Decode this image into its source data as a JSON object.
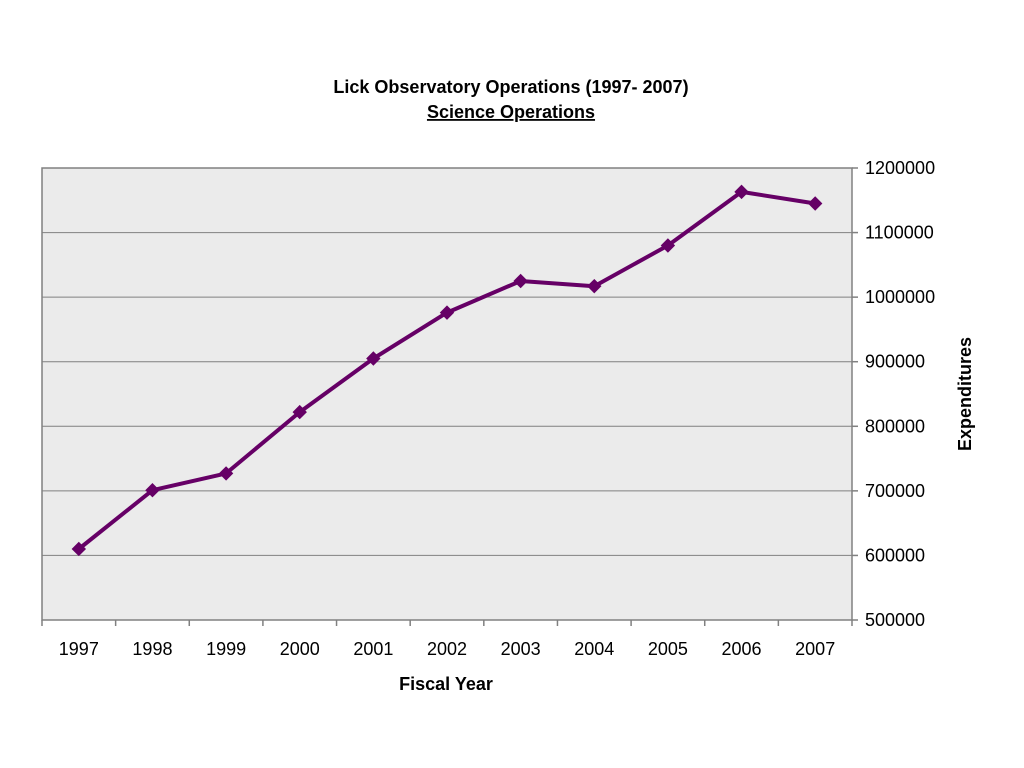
{
  "chart_data": {
    "type": "line",
    "title": "Lick Observatory Operations (1997- 2007)",
    "subtitle": "Science Operations",
    "xlabel": "Fiscal Year",
    "ylabel": "Expenditures",
    "categories": [
      "1997",
      "1998",
      "1999",
      "2000",
      "2001",
      "2002",
      "2003",
      "2004",
      "2005",
      "2006",
      "2007"
    ],
    "series": [
      {
        "values": [
          610000,
          701000,
          727000,
          822000,
          905000,
          976000,
          1025000,
          1017000,
          1080000,
          1163000,
          1145000
        ]
      }
    ],
    "ylim": [
      500000,
      1200000
    ],
    "yticks": [
      "500000",
      "600000",
      "700000",
      "800000",
      "900000",
      "1000000",
      "1100000",
      "1200000"
    ],
    "y_axis_side": "right",
    "grid": true,
    "legend": "none",
    "colors": {
      "line": "#660066",
      "plot_background": "#ebebeb",
      "gridline": "#808080",
      "axis": "#808080"
    }
  }
}
